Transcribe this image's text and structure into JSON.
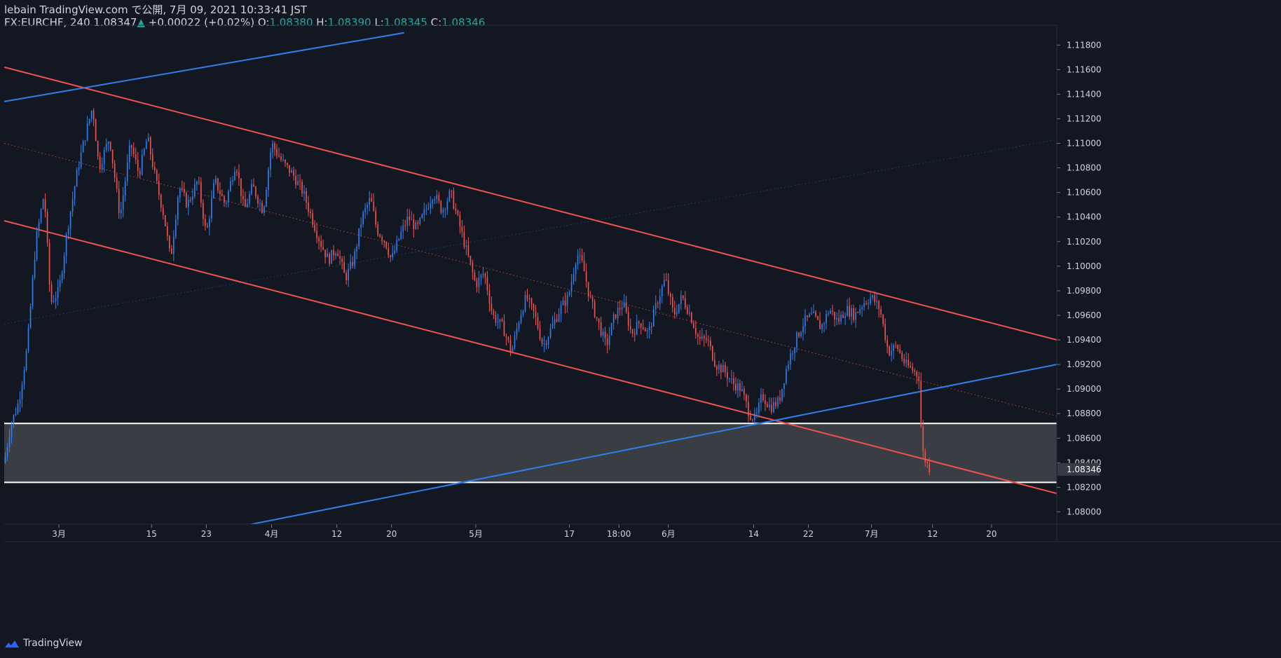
{
  "header": {
    "line1": "lebain TradingView.com で公開, 7月 09, 2021 10:33:41 JST",
    "symbol": "FX:EURCHF, 240",
    "last": "1.08347",
    "arrow": "▲",
    "change": "+0.00022 (+0.02%)",
    "o_label": "O:",
    "o_value": "1.08380",
    "h_label": "H:",
    "h_value": "1.08390",
    "l_label": "L:",
    "l_value": "1.08345",
    "c_label": "C:",
    "c_value": "1.08346"
  },
  "brand": {
    "name": "TradingView",
    "icon": "tradingview-logo-icon"
  },
  "colors": {
    "background": "#131722",
    "axis_text": "#d1d4dc",
    "up": "#2f80ed",
    "down": "#ef5350",
    "channel": "#ef5350",
    "trend": "#2f80ed",
    "zone_fill": "#3b3d44",
    "zone_border": "#ffffff",
    "price_label_bg": "#363a45"
  },
  "chart_data": {
    "type": "candlestick",
    "symbol": "FX:EURCHF",
    "timeframe": "240",
    "ylim": [
      1.079,
      1.1195
    ],
    "xlim": [
      0,
      100
    ],
    "y_ticks": [
      "1.11800",
      "1.11600",
      "1.11400",
      "1.11200",
      "1.11000",
      "1.10800",
      "1.10600",
      "1.10400",
      "1.10200",
      "1.10000",
      "1.09800",
      "1.09600",
      "1.09400",
      "1.09200",
      "1.09000",
      "1.08800",
      "1.08600",
      "1.08400",
      "1.08200",
      "1.08000"
    ],
    "x_ticks": [
      {
        "label": "3月",
        "x": 5.2
      },
      {
        "label": "15",
        "x": 14.0
      },
      {
        "label": "23",
        "x": 19.2
      },
      {
        "label": "4月",
        "x": 25.4
      },
      {
        "label": "12",
        "x": 31.6
      },
      {
        "label": "20",
        "x": 36.8
      },
      {
        "label": "5月",
        "x": 44.8
      },
      {
        "label": "17",
        "x": 53.7
      },
      {
        "label": "18:00",
        "x": 58.4
      },
      {
        "label": "6月",
        "x": 63.1
      },
      {
        "label": "14",
        "x": 71.2
      },
      {
        "label": "22",
        "x": 76.4
      },
      {
        "label": "7月",
        "x": 82.4
      },
      {
        "label": "12",
        "x": 88.2
      },
      {
        "label": "20",
        "x": 93.8
      }
    ],
    "current_price": "1.08346",
    "current_value": 1.08346,
    "price_path": [
      [
        0.0,
        1.084
      ],
      [
        0.6,
        1.087
      ],
      [
        1.4,
        1.089
      ],
      [
        2.2,
        1.0935
      ],
      [
        3.0,
        1.102
      ],
      [
        3.8,
        1.106
      ],
      [
        4.4,
        1.097
      ],
      [
        5.2,
        1.098
      ],
      [
        6.0,
        1.103
      ],
      [
        7.0,
        1.108
      ],
      [
        7.8,
        1.111
      ],
      [
        8.4,
        1.113
      ],
      [
        9.0,
        1.108
      ],
      [
        10.0,
        1.1105
      ],
      [
        11.0,
        1.104
      ],
      [
        12.0,
        1.11
      ],
      [
        12.8,
        1.1075
      ],
      [
        13.6,
        1.1105
      ],
      [
        14.4,
        1.107
      ],
      [
        15.2,
        1.104
      ],
      [
        15.8,
        1.1005
      ],
      [
        16.6,
        1.1065
      ],
      [
        17.4,
        1.105
      ],
      [
        18.4,
        1.107
      ],
      [
        19.2,
        1.1025
      ],
      [
        20.0,
        1.107
      ],
      [
        21.0,
        1.105
      ],
      [
        22.0,
        1.1085
      ],
      [
        22.8,
        1.1045
      ],
      [
        23.6,
        1.1065
      ],
      [
        24.6,
        1.1045
      ],
      [
        25.4,
        1.11
      ],
      [
        26.4,
        1.1085
      ],
      [
        27.4,
        1.1075
      ],
      [
        28.4,
        1.106
      ],
      [
        29.2,
        1.104
      ],
      [
        30.0,
        1.102
      ],
      [
        30.8,
        1.1005
      ],
      [
        31.6,
        1.1015
      ],
      [
        32.4,
        1.099
      ],
      [
        33.2,
        1.1005
      ],
      [
        34.0,
        1.104
      ],
      [
        34.8,
        1.1055
      ],
      [
        35.4,
        1.103
      ],
      [
        36.2,
        1.102
      ],
      [
        36.8,
        1.1005
      ],
      [
        37.6,
        1.1025
      ],
      [
        38.4,
        1.104
      ],
      [
        39.2,
        1.103
      ],
      [
        40.0,
        1.1045
      ],
      [
        40.8,
        1.106
      ],
      [
        41.6,
        1.1045
      ],
      [
        42.4,
        1.106
      ],
      [
        43.2,
        1.1035
      ],
      [
        44.0,
        1.101
      ],
      [
        44.8,
        1.0985
      ],
      [
        45.6,
        1.0995
      ],
      [
        46.4,
        1.096
      ],
      [
        47.4,
        1.095
      ],
      [
        48.2,
        1.093
      ],
      [
        49.0,
        1.096
      ],
      [
        49.6,
        1.0975
      ],
      [
        50.4,
        1.096
      ],
      [
        51.2,
        1.0935
      ],
      [
        52.0,
        1.095
      ],
      [
        52.8,
        1.0965
      ],
      [
        53.6,
        1.0975
      ],
      [
        54.4,
        1.101
      ],
      [
        55.0,
        1.1
      ],
      [
        55.6,
        1.0975
      ],
      [
        56.4,
        1.0955
      ],
      [
        57.2,
        1.0935
      ],
      [
        58.0,
        1.096
      ],
      [
        58.8,
        1.097
      ],
      [
        59.6,
        1.0945
      ],
      [
        60.4,
        1.0955
      ],
      [
        61.2,
        1.0945
      ],
      [
        62.0,
        1.097
      ],
      [
        62.8,
        1.099
      ],
      [
        63.6,
        1.096
      ],
      [
        64.4,
        1.0975
      ],
      [
        65.2,
        1.096
      ],
      [
        66.0,
        1.094
      ],
      [
        66.8,
        1.094
      ],
      [
        67.6,
        1.092
      ],
      [
        68.4,
        1.0915
      ],
      [
        69.2,
        1.0905
      ],
      [
        70.0,
        1.09
      ],
      [
        70.8,
        1.088
      ],
      [
        71.4,
        1.0875
      ],
      [
        72.0,
        1.0895
      ],
      [
        72.8,
        1.0885
      ],
      [
        73.6,
        1.089
      ],
      [
        74.4,
        1.092
      ],
      [
        75.2,
        1.094
      ],
      [
        76.0,
        1.0955
      ],
      [
        76.8,
        1.096
      ],
      [
        77.6,
        1.095
      ],
      [
        78.4,
        1.0965
      ],
      [
        79.2,
        1.0955
      ],
      [
        80.0,
        1.0965
      ],
      [
        80.8,
        1.096
      ],
      [
        81.6,
        1.097
      ],
      [
        82.4,
        1.0975
      ],
      [
        83.2,
        1.0965
      ],
      [
        84.0,
        1.093
      ],
      [
        84.8,
        1.0935
      ],
      [
        85.6,
        1.092
      ],
      [
        86.4,
        1.0915
      ],
      [
        86.9,
        1.091
      ],
      [
        87.2,
        1.085
      ],
      [
        87.6,
        1.084
      ],
      [
        88.0,
        1.08346
      ]
    ],
    "drawings": {
      "channel_upper": {
        "color": "down",
        "from": [
          0,
          1.1162
        ],
        "to": [
          100,
          1.094
        ]
      },
      "channel_lower": {
        "color": "down",
        "from": [
          0,
          1.1037
        ],
        "to": [
          100,
          1.0815
        ]
      },
      "channel_mid": {
        "color": "down",
        "dotted": true,
        "from": [
          0,
          1.11
        ],
        "to": [
          100,
          1.0878
        ]
      },
      "trend_top": {
        "color": "trend",
        "from": [
          0,
          1.1134
        ],
        "to": [
          38.0,
          1.119
        ]
      },
      "trend_support": {
        "color": "trend",
        "from": [
          0,
          1.075
        ],
        "to": [
          100,
          1.092
        ]
      },
      "trend_faint": {
        "color": "trend",
        "dotted": true,
        "faint": true,
        "from": [
          0,
          1.0953
        ],
        "to": [
          100,
          1.1103
        ]
      },
      "zone": {
        "from": 1.0824,
        "to": 1.0872
      }
    }
  }
}
